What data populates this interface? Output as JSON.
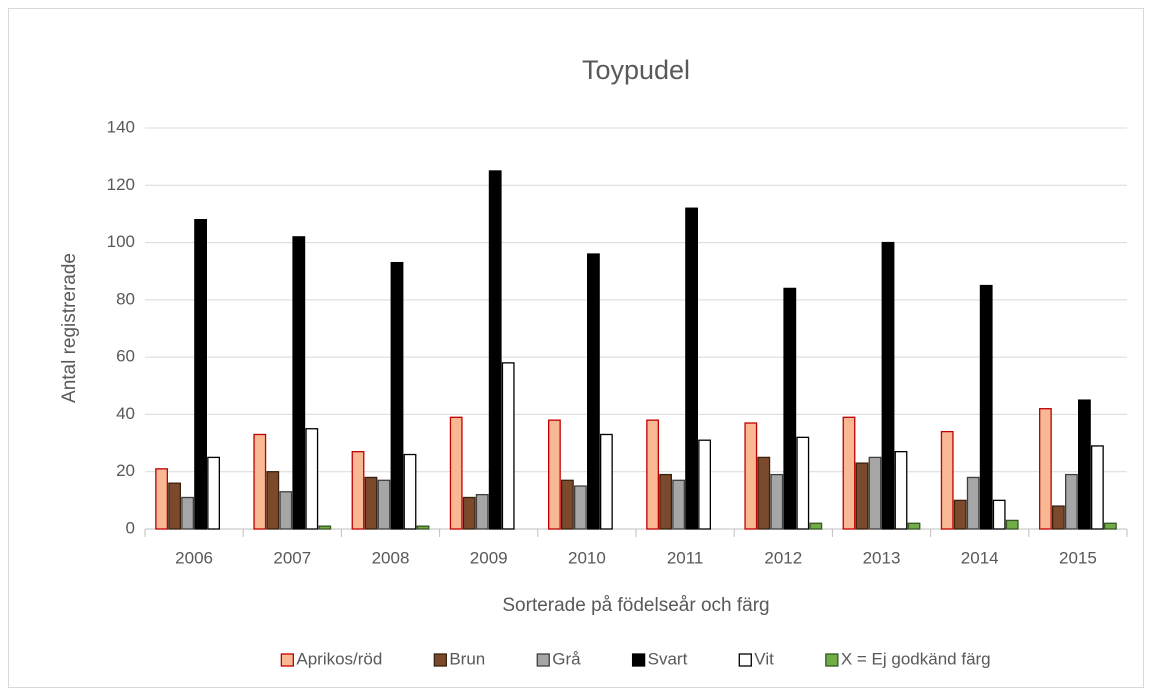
{
  "chart_data": {
    "type": "bar",
    "title": "Toypudel",
    "xlabel": "Sorterade på födelseår och färg",
    "ylabel": "Antal registrerade",
    "categories": [
      "2006",
      "2007",
      "2008",
      "2009",
      "2010",
      "2011",
      "2012",
      "2013",
      "2014",
      "2015"
    ],
    "series": [
      {
        "name": "Aprikos/röd",
        "color": "#f8b893",
        "edgecolor": "#c00000",
        "values": [
          21,
          33,
          27,
          39,
          38,
          38,
          37,
          39,
          34,
          42
        ]
      },
      {
        "name": "Brun",
        "color": "#7b4a2d",
        "edgecolor": "#3a220f",
        "values": [
          16,
          20,
          18,
          11,
          17,
          19,
          25,
          23,
          10,
          8
        ]
      },
      {
        "name": "Grå",
        "color": "#a6a6a6",
        "edgecolor": "#404040",
        "values": [
          11,
          13,
          17,
          12,
          15,
          17,
          19,
          25,
          18,
          19
        ]
      },
      {
        "name": "Svart",
        "color": "#000000",
        "edgecolor": "#000000",
        "values": [
          108,
          102,
          93,
          125,
          96,
          112,
          84,
          100,
          85,
          45
        ]
      },
      {
        "name": "Vit",
        "color": "#ffffff",
        "edgecolor": "#000000",
        "values": [
          25,
          35,
          26,
          58,
          33,
          31,
          32,
          27,
          10,
          29
        ]
      },
      {
        "name": "X = Ej godkänd färg",
        "color": "#70ad47",
        "edgecolor": "#375623",
        "values": [
          0,
          1,
          1,
          0,
          0,
          0,
          2,
          2,
          3,
          2
        ]
      }
    ],
    "ylim": [
      0,
      140
    ],
    "yticks": [
      0,
      20,
      40,
      60,
      80,
      100,
      120,
      140
    ],
    "grid": true,
    "legend": "bottom"
  }
}
